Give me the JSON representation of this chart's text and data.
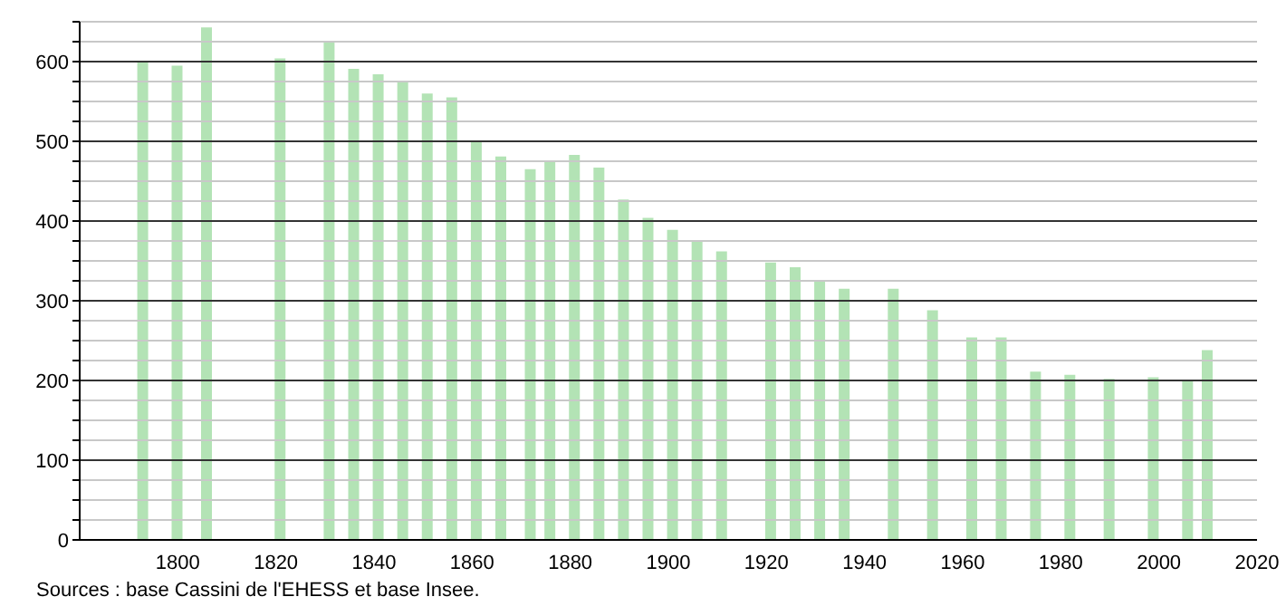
{
  "chart_data": {
    "type": "bar",
    "x": [
      1793,
      1800,
      1806,
      1821,
      1831,
      1836,
      1841,
      1846,
      1851,
      1856,
      1861,
      1866,
      1872,
      1876,
      1881,
      1886,
      1891,
      1896,
      1901,
      1906,
      1911,
      1921,
      1926,
      1931,
      1936,
      1946,
      1954,
      1962,
      1968,
      1975,
      1982,
      1990,
      1999,
      2006,
      2010
    ],
    "values": [
      600,
      595,
      643,
      604,
      624,
      591,
      584,
      575,
      560,
      555,
      501,
      481,
      465,
      474,
      483,
      467,
      427,
      404,
      389,
      375,
      362,
      348,
      342,
      326,
      315,
      315,
      288,
      254,
      254,
      211,
      207,
      202,
      204,
      200,
      238
    ],
    "color": "#b3e3b5",
    "xlim": [
      1780,
      2020
    ],
    "xticks": [
      1800,
      1820,
      1840,
      1860,
      1880,
      1900,
      1920,
      1940,
      1960,
      1980,
      2000,
      2020
    ],
    "ylim": [
      0,
      650
    ],
    "yticks": [
      0,
      {
        "value": 25,
        "label": null
      },
      {
        "value": 50,
        "label": null
      },
      {
        "value": 75,
        "label": null
      },
      100,
      {
        "value": 125,
        "label": null
      },
      {
        "value": 150,
        "label": null
      },
      {
        "value": 175,
        "label": null
      },
      200,
      {
        "value": 225,
        "label": null
      },
      {
        "value": 250,
        "label": null
      },
      {
        "value": 275,
        "label": null
      },
      300,
      {
        "value": 325,
        "label": null
      },
      {
        "value": 350,
        "label": null
      },
      {
        "value": 375,
        "label": null
      },
      400,
      {
        "value": 425,
        "label": null
      },
      {
        "value": 450,
        "label": null
      },
      {
        "value": 475,
        "label": null
      },
      500,
      {
        "value": 525,
        "label": null
      },
      {
        "value": 550,
        "label": null
      },
      {
        "value": 575,
        "label": null
      },
      600,
      {
        "value": 625,
        "label": null
      },
      {
        "value": 650,
        "label": null
      }
    ],
    "grid": "y",
    "legend": false,
    "annotations": [
      "Sources : base Cassini de l'EHESS et base Insee."
    ]
  }
}
